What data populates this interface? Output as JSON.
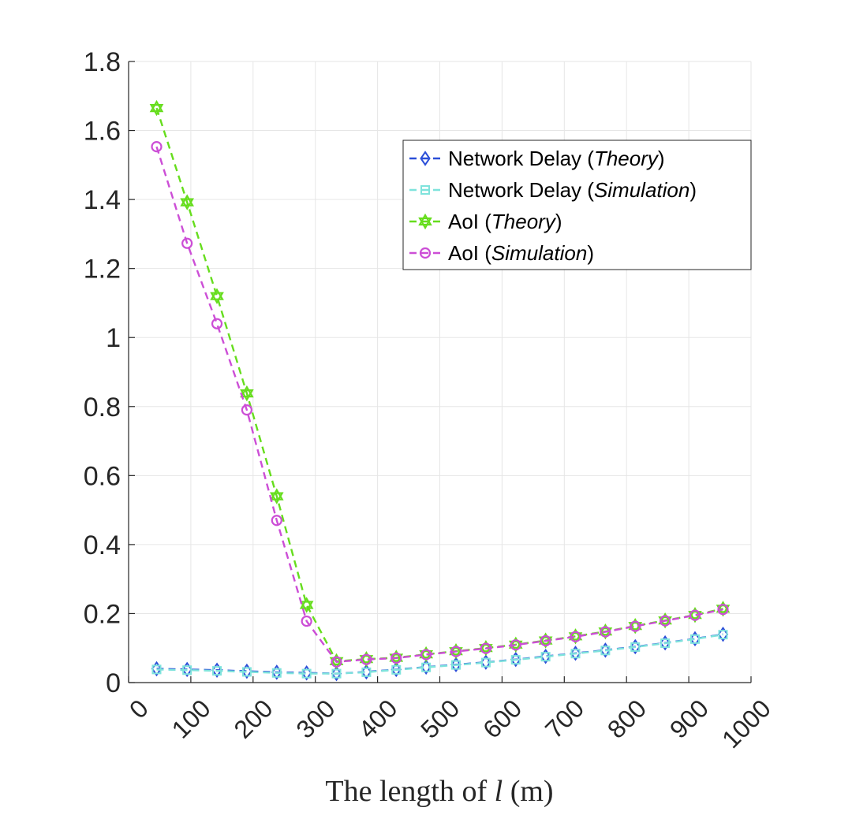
{
  "chart_data": {
    "type": "line",
    "title": "",
    "xlabel": {
      "prefix": "The length of ",
      "var": "l",
      "suffix": " (m)"
    },
    "ylabel": "",
    "xlim": [
      0,
      1000
    ],
    "ylim": [
      0,
      1.8
    ],
    "grid": true,
    "x_ticks": [
      0,
      100,
      200,
      300,
      400,
      500,
      600,
      700,
      800,
      900,
      1000
    ],
    "x_tick_labels": [
      "0",
      "100",
      "200",
      "300",
      "400",
      "500",
      "600",
      "700",
      "800",
      "900",
      "1000"
    ],
    "y_ticks": [
      0,
      0.2,
      0.4,
      0.6,
      0.8,
      1,
      1.2,
      1.4,
      1.6,
      1.8
    ],
    "y_tick_labels": [
      "0",
      "0.2",
      "0.4",
      "0.6",
      "0.8",
      "1",
      "1.2",
      "1.4",
      "1.6",
      "1.8"
    ],
    "legend_position": "top-right",
    "x": [
      45,
      94,
      142,
      190,
      238,
      286,
      334,
      382,
      430,
      478,
      526,
      574,
      622,
      670,
      718,
      766,
      814,
      862,
      910,
      955
    ],
    "series": [
      {
        "name": "Network Delay (Theory)",
        "label_main": "Network Delay (",
        "label_italic": "Theory",
        "label_end": ")",
        "color": "#2b4fd8",
        "marker": "diamond",
        "values": [
          0.04,
          0.038,
          0.036,
          0.033,
          0.03,
          0.028,
          0.026,
          0.031,
          0.038,
          0.045,
          0.052,
          0.059,
          0.067,
          0.076,
          0.085,
          0.094,
          0.104,
          0.115,
          0.127,
          0.14
        ]
      },
      {
        "name": "Network Delay (Simulation)",
        "label_main": "Network Delay (",
        "label_italic": "Simulation",
        "label_end": ")",
        "color": "#7fe3dc",
        "marker": "square",
        "values": [
          0.038,
          0.036,
          0.034,
          0.031,
          0.028,
          0.026,
          0.026,
          0.03,
          0.037,
          0.044,
          0.051,
          0.058,
          0.066,
          0.075,
          0.084,
          0.093,
          0.103,
          0.114,
          0.126,
          0.139
        ]
      },
      {
        "name": "AoI (Theory)",
        "label_main": "AoI (",
        "label_italic": "Theory",
        "label_end": ")",
        "color": "#66dd1d",
        "marker": "hexagram",
        "values": [
          1.665,
          1.392,
          1.12,
          0.838,
          0.54,
          0.225,
          0.062,
          0.068,
          0.072,
          0.082,
          0.091,
          0.1,
          0.11,
          0.122,
          0.134,
          0.148,
          0.164,
          0.18,
          0.196,
          0.214
        ]
      },
      {
        "name": "AoI (Simulation)",
        "label_main": "AoI (",
        "label_italic": "Simulation",
        "label_end": ")",
        "color": "#cc4ed6",
        "marker": "circle",
        "values": [
          1.553,
          1.273,
          1.04,
          0.79,
          0.47,
          0.178,
          0.06,
          0.067,
          0.071,
          0.081,
          0.09,
          0.099,
          0.109,
          0.121,
          0.133,
          0.147,
          0.163,
          0.179,
          0.195,
          0.212
        ]
      }
    ]
  }
}
